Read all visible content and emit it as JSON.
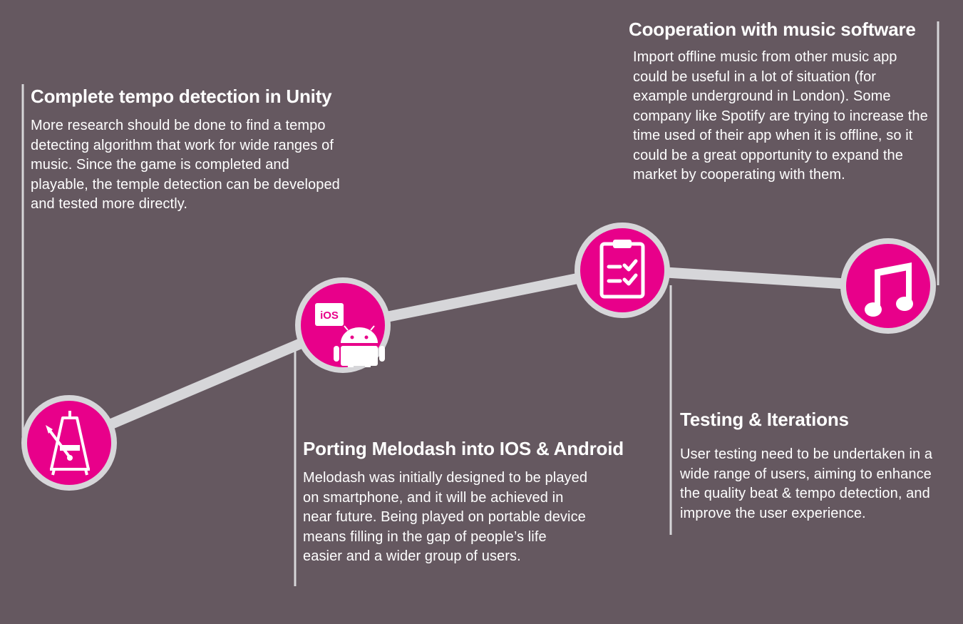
{
  "colors": {
    "background": "#655860",
    "accent": "#e8008a",
    "track": "#d6d6d9",
    "text": "#ffffff"
  },
  "stages": [
    {
      "icon": "metronome-icon",
      "title": "Complete tempo detection in Unity",
      "body": "More research should be done to find a tempo detecting algorithm that work for wide ranges of music. Since the game is completed and playable, the temple detection can be developed and tested more directly."
    },
    {
      "icon": "ios-android-icon",
      "icon_label": "iOS",
      "title": "Porting Melodash into IOS & Android",
      "body": "Melodash was initially designed to be played on smartphone, and it will be achieved in near future. Being played on portable device means filling in the gap of people’s life easier and a wider group of users."
    },
    {
      "icon": "checklist-clipboard-icon",
      "title": "Testing & Iterations",
      "body": "User testing need to be undertaken in a wide range of users, aiming to enhance the quality beat & tempo detection, and improve the user experience."
    },
    {
      "icon": "music-note-icon",
      "title": "Cooperation with music software",
      "body": "Import offline music from other music app could be useful in a lot of situation (for example underground in London). Some company like Spotify are trying to increase the time used of their app when it is offline, so it could be a great opportunity to expand the market by cooperating with them."
    }
  ]
}
